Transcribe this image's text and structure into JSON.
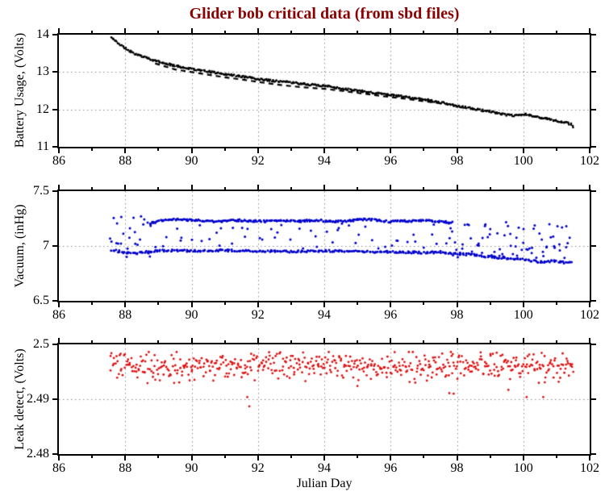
{
  "title": "Glider bob critical data (from sbd files)",
  "colors": {
    "title": "#8B0000",
    "battery": "#000000",
    "vacuum": "#0000CC",
    "leak": "#DD1111",
    "grid": "#8C8C8C",
    "axis": "#000000"
  },
  "chart_data": [
    {
      "type": "scatter",
      "ylabel": "Battery Usage, (Volts)",
      "xlim": [
        86,
        102
      ],
      "ylim": [
        11,
        14
      ],
      "xticks": [
        86,
        88,
        90,
        92,
        94,
        96,
        98,
        100,
        102
      ],
      "xtick_labels": [
        "86",
        "88",
        "90",
        "92",
        "94",
        "96",
        "98",
        "100",
        "102"
      ],
      "yticks": [
        14,
        13,
        12,
        11
      ],
      "ytick_labels": [
        "14",
        "13",
        "12",
        "11"
      ],
      "grid_x": [
        88,
        90,
        92,
        94,
        96,
        98,
        100
      ],
      "grid_y": [
        13,
        12
      ],
      "x_minor_step": 1,
      "grid_style": "dotted",
      "series": [
        {
          "name": "battery-voltage-trace",
          "kind": "scatter",
          "color": "#000000",
          "marker": 2.6,
          "n": 520,
          "seed": 11,
          "x_start": 87.58,
          "x_end": 101.45,
          "noise": 0.025,
          "trend": [
            [
              87.58,
              13.93
            ],
            [
              87.72,
              13.82
            ],
            [
              87.9,
              13.7
            ],
            [
              88.1,
              13.58
            ],
            [
              88.35,
              13.47
            ],
            [
              88.6,
              13.39
            ],
            [
              88.9,
              13.3
            ],
            [
              89.3,
              13.21
            ],
            [
              89.7,
              13.13
            ],
            [
              90.1,
              13.07
            ],
            [
              90.6,
              13.0
            ],
            [
              91.1,
              12.93
            ],
            [
              91.6,
              12.87
            ],
            [
              92.1,
              12.8
            ],
            [
              92.6,
              12.76
            ],
            [
              93.1,
              12.71
            ],
            [
              93.6,
              12.66
            ],
            [
              94.1,
              12.62
            ],
            [
              94.6,
              12.55
            ],
            [
              95.1,
              12.49
            ],
            [
              95.6,
              12.43
            ],
            [
              96.1,
              12.38
            ],
            [
              96.6,
              12.31
            ],
            [
              97.1,
              12.25
            ],
            [
              97.6,
              12.17
            ],
            [
              98.1,
              12.08
            ],
            [
              98.6,
              12.0
            ],
            [
              99.1,
              11.93
            ],
            [
              99.45,
              11.86
            ],
            [
              99.75,
              11.83
            ],
            [
              100.05,
              11.87
            ],
            [
              100.35,
              11.81
            ],
            [
              100.7,
              11.75
            ],
            [
              101.05,
              11.69
            ],
            [
              101.3,
              11.64
            ],
            [
              101.45,
              11.6
            ]
          ]
        },
        {
          "name": "battery-voltage-secondary-trace",
          "kind": "dash-line",
          "color": "#000000",
          "width": 2.2,
          "dash": [
            6,
            5
          ],
          "trend": [
            [
              88.9,
              13.23
            ],
            [
              89.5,
              13.07
            ],
            [
              90.0,
              13.0
            ],
            [
              90.5,
              12.93
            ],
            [
              91.0,
              12.86
            ],
            [
              91.6,
              12.79
            ],
            [
              92.2,
              12.71
            ],
            [
              92.8,
              12.64
            ],
            [
              93.4,
              12.59
            ],
            [
              94.0,
              12.55
            ],
            [
              94.6,
              12.49
            ],
            [
              95.2,
              12.42
            ],
            [
              95.8,
              12.35
            ],
            [
              96.4,
              12.29
            ],
            [
              97.0,
              12.22
            ],
            [
              97.6,
              12.15
            ]
          ]
        },
        {
          "name": "battery-end-points",
          "kind": "points",
          "color": "#000000",
          "marker": 2.6,
          "points": [
            [
              101.5,
              11.52
            ],
            [
              101.49,
              11.56
            ]
          ]
        }
      ]
    },
    {
      "type": "scatter",
      "ylabel": "Vacuum, (inHg)",
      "xlim": [
        86,
        102
      ],
      "ylim": [
        6.5,
        7.5
      ],
      "xticks": [
        86,
        88,
        90,
        92,
        94,
        96,
        98,
        100,
        102
      ],
      "xtick_labels": [
        "86",
        "88",
        "90",
        "92",
        "94",
        "96",
        "98",
        "100",
        "102"
      ],
      "yticks": [
        7.5,
        7,
        6.5
      ],
      "ytick_labels": [
        "7.5",
        "7",
        "6.5"
      ],
      "grid_x": [
        88,
        90,
        92,
        94,
        96,
        98,
        100
      ],
      "grid_y": [
        7
      ],
      "x_minor_step": 1,
      "grid_style": "dotted",
      "series": [
        {
          "name": "vacuum-early-cluster",
          "kind": "scatter",
          "color": "#0000CC",
          "marker": 3,
          "n": 26,
          "seed": 21,
          "x_start": 87.55,
          "x_end": 88.85,
          "y_range": [
            6.88,
            7.3
          ]
        },
        {
          "name": "vacuum-upper-band",
          "kind": "scatter",
          "color": "#0000CC",
          "marker": 3,
          "n": 260,
          "seed": 22,
          "x_start": 88.75,
          "x_end": 97.85,
          "noise": 0.009,
          "trend": [
            [
              88.75,
              7.205
            ],
            [
              89.0,
              7.23
            ],
            [
              89.3,
              7.245
            ],
            [
              89.8,
              7.24
            ],
            [
              90.3,
              7.23
            ],
            [
              90.8,
              7.225
            ],
            [
              91.3,
              7.235
            ],
            [
              91.8,
              7.23
            ],
            [
              92.3,
              7.225
            ],
            [
              92.8,
              7.23
            ],
            [
              93.3,
              7.228
            ],
            [
              93.8,
              7.235
            ],
            [
              94.2,
              7.222
            ],
            [
              94.7,
              7.228
            ],
            [
              95.1,
              7.242
            ],
            [
              95.5,
              7.238
            ],
            [
              96.0,
              7.222
            ],
            [
              96.5,
              7.228
            ],
            [
              97.0,
              7.232
            ],
            [
              97.5,
              7.222
            ],
            [
              97.85,
              7.212
            ]
          ]
        },
        {
          "name": "vacuum-lower-band",
          "kind": "scatter",
          "color": "#0000CC",
          "marker": 3,
          "n": 340,
          "seed": 23,
          "x_start": 87.6,
          "x_end": 101.45,
          "noise": 0.009,
          "trend": [
            [
              87.6,
              6.965
            ],
            [
              87.9,
              6.945
            ],
            [
              88.3,
              6.93
            ],
            [
              88.7,
              6.95
            ],
            [
              89.2,
              6.96
            ],
            [
              90.0,
              6.955
            ],
            [
              91.0,
              6.96
            ],
            [
              92.0,
              6.955
            ],
            [
              93.0,
              6.95
            ],
            [
              94.0,
              6.955
            ],
            [
              95.0,
              6.95
            ],
            [
              96.0,
              6.945
            ],
            [
              97.0,
              6.94
            ],
            [
              97.5,
              6.945
            ],
            [
              98.0,
              6.93
            ],
            [
              98.5,
              6.92
            ],
            [
              99.0,
              6.9
            ],
            [
              99.5,
              6.89
            ],
            [
              100.0,
              6.875
            ],
            [
              100.3,
              6.862
            ],
            [
              100.6,
              6.852
            ],
            [
              100.9,
              6.865
            ],
            [
              101.2,
              6.85
            ],
            [
              101.45,
              6.845
            ]
          ]
        },
        {
          "name": "vacuum-mid-scatter",
          "kind": "scatter",
          "color": "#0000CC",
          "marker": 3,
          "n": 55,
          "seed": 24,
          "x_start": 88.8,
          "x_end": 97.8,
          "y_range": [
            6.97,
            7.21
          ]
        },
        {
          "name": "vacuum-late-scatter",
          "kind": "scatter",
          "color": "#0000CC",
          "marker": 3,
          "n": 75,
          "seed": 25,
          "x_start": 97.8,
          "x_end": 101.4,
          "y_range": [
            6.88,
            7.22
          ]
        }
      ]
    },
    {
      "type": "scatter",
      "ylabel": "Leak detect, (Volts)",
      "xlabel": "Julian Day",
      "xlim": [
        86,
        102
      ],
      "ylim": [
        2.48,
        2.5
      ],
      "xticks": [
        86,
        88,
        90,
        92,
        94,
        96,
        98,
        100,
        102
      ],
      "xtick_labels": [
        "86",
        "88",
        "90",
        "92",
        "94",
        "96",
        "98",
        "100",
        "102"
      ],
      "yticks": [
        2.5,
        2.49,
        2.48
      ],
      "ytick_labels": [
        "2.5",
        "2.49",
        "2.48"
      ],
      "grid_x": [
        88,
        90,
        92,
        94,
        96,
        98,
        100
      ],
      "grid_y": [
        2.49
      ],
      "x_minor_step": 1,
      "grid_style": "dotted",
      "series": [
        {
          "name": "leak-detect-band",
          "kind": "scatter",
          "color": "#DD1111",
          "marker": 2.8,
          "n": 560,
          "seed": 31,
          "x_start": 87.55,
          "x_end": 101.5,
          "noise": 0.0016,
          "noise_kind": "gauss2",
          "clamp": [
            2.4922,
            2.4986
          ],
          "trend": [
            [
              87.55,
              2.496
            ],
            [
              101.5,
              2.496
            ]
          ]
        },
        {
          "name": "leak-detect-outliers",
          "kind": "points",
          "color": "#DD1111",
          "marker": 2.8,
          "points": [
            [
              91.68,
              2.4904
            ],
            [
              91.74,
              2.4887
            ],
            [
              95.0,
              2.4924
            ],
            [
              97.77,
              2.4911
            ],
            [
              97.9,
              2.491
            ],
            [
              99.55,
              2.4917
            ],
            [
              100.1,
              2.4904
            ],
            [
              100.6,
              2.4904
            ]
          ]
        }
      ]
    }
  ]
}
